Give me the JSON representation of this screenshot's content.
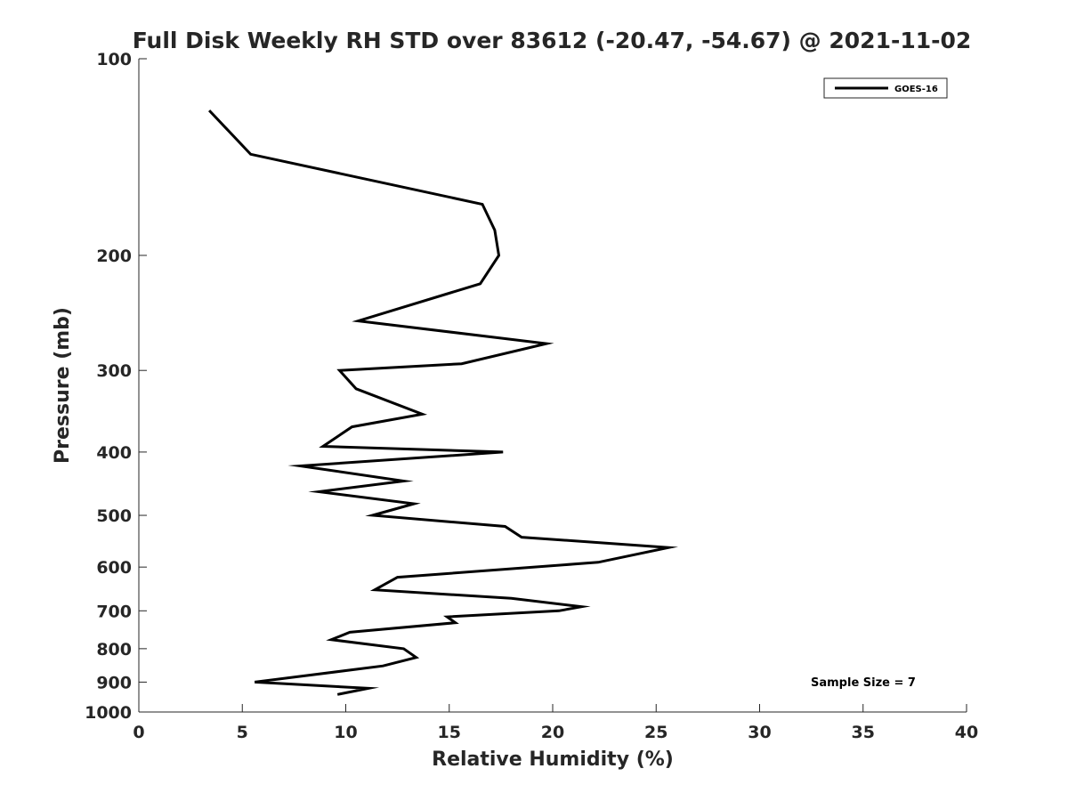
{
  "chart_data": {
    "type": "line",
    "title": "Full Disk Weekly RH STD over 83612 (-20.47, -54.67) @ 2021-11-02",
    "xlabel": "Relative Humidity (%)",
    "ylabel": "Pressure (mb)",
    "xlim": [
      0,
      40
    ],
    "ylim": [
      100,
      1000
    ],
    "yscale": "log",
    "yreversed": true,
    "grid": false,
    "legend_placement": "top-right",
    "xticks": [
      0,
      5,
      10,
      15,
      20,
      25,
      30,
      35,
      40
    ],
    "xtick_labels": [
      "0",
      "5",
      "10",
      "15",
      "20",
      "25",
      "30",
      "35",
      "40"
    ],
    "yticks": [
      100,
      200,
      300,
      400,
      500,
      600,
      700,
      800,
      900,
      1000
    ],
    "ytick_labels": [
      "100",
      "200",
      "300",
      "400",
      "500",
      "600",
      "700",
      "800",
      "900",
      "1000"
    ],
    "annotation": "Sample Size = 7",
    "series": [
      {
        "name": "GOES-16",
        "color": "#000000",
        "x": [
          3.4,
          5.4,
          16.6,
          17.2,
          17.4,
          16.5,
          10.6,
          19.7,
          15.6,
          9.7,
          10.5,
          13.7,
          10.3,
          8.9,
          17.6,
          7.8,
          12.8,
          8.7,
          13.3,
          11.3,
          17.7,
          18.5,
          25.6,
          22.2,
          12.5,
          11.4,
          18.0,
          21.4,
          20.3,
          14.9,
          15.3,
          10.2,
          9.3,
          12.8,
          13.4,
          11.8,
          5.6,
          11.1,
          9.6
        ],
        "y": [
          120,
          140,
          167,
          183,
          200,
          221,
          252,
          273,
          293,
          300,
          320,
          350,
          366,
          392,
          400,
          420,
          443,
          460,
          480,
          500,
          520,
          540,
          560,
          590,
          622,
          650,
          670,
          690,
          700,
          715,
          730,
          755,
          775,
          800,
          825,
          850,
          900,
          920,
          940
        ]
      }
    ]
  }
}
